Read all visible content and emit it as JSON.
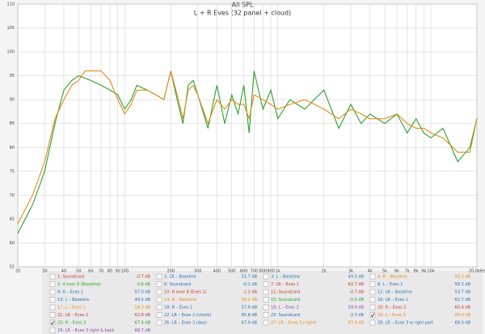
{
  "chart_data": {
    "type": "line",
    "title": "All SPL",
    "subtitle": "L + R Eves (32 panel + cloud)",
    "xscale": "log",
    "grid": true,
    "xlim": [
      20,
      20000
    ],
    "ylim": [
      55,
      110
    ],
    "yticks": [
      55,
      60,
      65,
      70,
      75,
      80,
      85,
      90,
      95,
      100,
      105,
      110
    ],
    "xticks": [
      20,
      30,
      40,
      50,
      60,
      70,
      80,
      90,
      100,
      200,
      300,
      400,
      500,
      600,
      700,
      800,
      900,
      {
        "value": 1000,
        "label": "1k"
      },
      {
        "value": 2000,
        "label": "2k"
      },
      {
        "value": 3000,
        "label": "3k"
      },
      {
        "value": 4000,
        "label": "4k"
      },
      {
        "value": 5000,
        "label": "5k"
      },
      {
        "value": 6000,
        "label": "6k"
      },
      {
        "value": 7000,
        "label": "7k"
      },
      {
        "value": 8000,
        "label": "8k"
      },
      {
        "value": 9000,
        "label": "9k"
      },
      {
        "value": 10000,
        "label": "10k"
      },
      {
        "value": 20000,
        "label": "20.0kHz"
      }
    ],
    "x": [
      20,
      25,
      30,
      35,
      40,
      45,
      50,
      55,
      60,
      70,
      80,
      90,
      100,
      110,
      120,
      140,
      160,
      180,
      200,
      220,
      240,
      260,
      280,
      300,
      350,
      400,
      450,
      500,
      550,
      600,
      650,
      700,
      800,
      900,
      1000,
      1200,
      1500,
      2000,
      2500,
      3000,
      3500,
      4000,
      5000,
      6000,
      7000,
      8000,
      9000,
      10000,
      12000,
      15000,
      18000,
      20000
    ],
    "series": [
      {
        "color": "#2ca02c",
        "values": [
          62,
          68,
          75,
          85,
          92,
          94,
          95,
          94.5,
          94,
          93,
          92,
          91,
          88,
          90,
          93,
          92,
          91,
          90,
          96,
          90,
          85,
          93,
          94,
          91,
          84,
          93,
          85,
          91,
          87,
          93,
          83,
          96,
          88,
          92,
          86,
          90,
          88,
          92,
          84,
          89,
          85,
          87,
          85,
          87,
          83,
          86,
          83,
          82,
          84,
          77,
          80,
          86
        ]
      },
      {
        "color": "#e8891c",
        "values": [
          64,
          70,
          77,
          86,
          90,
          93,
          94,
          96,
          96,
          96,
          94,
          90,
          87,
          89,
          92,
          92,
          91,
          90,
          96,
          91,
          86,
          92,
          93,
          91,
          85,
          90,
          88,
          90,
          89,
          89,
          86,
          91,
          90,
          89,
          88,
          89,
          90,
          88,
          86,
          88,
          87,
          86,
          86,
          87,
          85,
          84,
          84,
          83,
          82,
          79,
          79,
          86
        ]
      }
    ],
    "legend_entries": [
      {
        "label": "1: Soundcard",
        "level": "-0.7 dB",
        "color": "#c0392b",
        "checked": false
      },
      {
        "label": "2: LR – Baseline",
        "level": "51.7 dB",
        "color": "#2a6db0",
        "checked": false
      },
      {
        "label": "3: L – Baseline",
        "level": "49.5 dB",
        "color": "#2a6db0",
        "checked": false
      },
      {
        "label": "4: R – Baseline",
        "level": "50.2 dB",
        "color": "#e8891c",
        "checked": false
      },
      {
        "label": "5: 4 over 8 (Baseline)",
        "level": "0.6 dB",
        "color": "#2ca02c",
        "checked": false
      },
      {
        "label": "6: Soundcard",
        "level": "-0.1 dB",
        "color": "#2a6db0",
        "checked": false
      },
      {
        "label": "7: LR – Eves 1",
        "level": "62.7 dB",
        "color": "#c0392b",
        "checked": false
      },
      {
        "label": "8: L – Eves 1",
        "level": "58.3 dB",
        "color": "#2a6db0",
        "checked": false
      },
      {
        "label": "9: R – Eves 1",
        "level": "57.0 dB",
        "color": "#2a6db0",
        "checked": false
      },
      {
        "label": "10: R over 8 (Eves 1)",
        "level": "-2.2 dB",
        "color": "#c0392b",
        "checked": false
      },
      {
        "label": "11: Soundcard",
        "level": "-0.7 dB",
        "color": "#c0392b",
        "checked": false
      },
      {
        "label": "12: LR – Baseline",
        "level": "53.7 dB",
        "color": "#2a6db0",
        "checked": false
      },
      {
        "label": "13: L – Baseline",
        "level": "49.5 dB",
        "color": "#2a6db0",
        "checked": false
      },
      {
        "label": "14: R – Baseline",
        "level": "50.2 dB",
        "color": "#e8891c",
        "checked": false
      },
      {
        "label": "15: Soundcard",
        "level": "-0.5 dB",
        "color": "#2ca02c",
        "checked": false
      },
      {
        "label": "16: LR – Eves 1",
        "level": "62.7 dB",
        "color": "#2a6db0",
        "checked": false
      },
      {
        "label": "17: L – Eves 1",
        "level": "58.3 dB",
        "color": "#e8891c",
        "checked": false
      },
      {
        "label": "18: R – Eves 1",
        "level": "57.6 dB",
        "color": "#2a6db0",
        "checked": false
      },
      {
        "label": "19: L – Eves 2",
        "level": "59.0 dB",
        "color": "#8e44ad",
        "checked": false
      },
      {
        "label": "20: R – Eves 2",
        "level": "60.4 dB",
        "color": "#c0392b",
        "checked": false
      },
      {
        "label": "21: LR – Eves 2",
        "level": "62.8 dB",
        "color": "#c0392b",
        "checked": false
      },
      {
        "label": "22: LR – Eves 2 (check)",
        "level": "65.8 dB",
        "color": "#2a6db0",
        "checked": false
      },
      {
        "label": "23: Soundcard",
        "level": "-2.3 dB",
        "color": "#2a6db0",
        "checked": false
      },
      {
        "label": "24: L – Eves 3",
        "level": "68.0 dB",
        "color": "#e8891c",
        "checked": true
      },
      {
        "label": "25: R – Eves 3",
        "level": "67.4 dB",
        "color": "#2ca02c",
        "checked": true
      },
      {
        "label": "26: LR – Eves 3 (day)",
        "level": "67.9 dB",
        "color": "#2a6db0",
        "checked": false
      },
      {
        "label": "27: LR – Eves 3 (night)",
        "level": "67.4 dB",
        "color": "#e8891c",
        "checked": false
      },
      {
        "label": "28: LR – Eves 3 w right part",
        "level": "68.0 dB",
        "color": "#2a6db0",
        "checked": false
      },
      {
        "label": "29: LR – Eves 3 right & back",
        "level": "68.7 dB",
        "color": "#8e44ad",
        "checked": false
      }
    ]
  }
}
